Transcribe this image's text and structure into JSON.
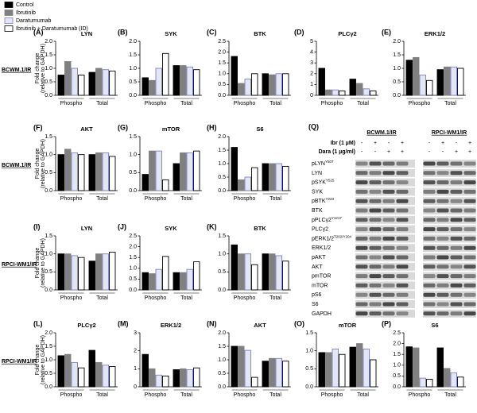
{
  "legend": [
    {
      "name": "Control",
      "color": "#000000",
      "edge": "#000000"
    },
    {
      "name": "Ibrutinib",
      "color": "#808080",
      "edge": "#808080"
    },
    {
      "name": "Daratumumab",
      "color": "#e4e7f3",
      "edge": "#7b80c9"
    },
    {
      "name": "Ibrutinib + Daratumumab (ID)",
      "color": "#ffffff",
      "edge": "#000000"
    }
  ],
  "row_labels": [
    "BCWM.1/IR",
    "BCWM.1/IR",
    "RPCI-WM1/IR",
    "RPCI-WM1/IR"
  ],
  "chart_data": [
    {
      "type": "bar",
      "label": "(A)",
      "title": "LYN",
      "ylabel": [
        "Fold change",
        "(relative to GAPDH)"
      ],
      "categories": [
        "Phospho",
        "Total"
      ],
      "series": [
        {
          "values": [
            0.75,
            0.85
          ]
        },
        {
          "values": [
            1.25,
            1.0
          ]
        },
        {
          "values": [
            1.0,
            0.95
          ]
        },
        {
          "values": [
            0.75,
            0.9
          ]
        }
      ],
      "ylim": [
        0,
        2
      ],
      "yticks": [
        {
          "value": 0,
          "label": "0.0"
        },
        {
          "value": 0.5,
          "label": "0.5"
        },
        {
          "value": 1,
          "label": "1.0"
        },
        {
          "value": 1.5,
          "label": "1.5"
        },
        {
          "value": 2,
          "label": "2.0"
        }
      ]
    },
    {
      "type": "bar",
      "label": "(B)",
      "title": "SYK",
      "categories": [
        "Phospho",
        "Total"
      ],
      "series": [
        {
          "values": [
            0.65,
            1.1
          ]
        },
        {
          "values": [
            0.55,
            1.1
          ]
        },
        {
          "values": [
            1.0,
            1.05
          ]
        },
        {
          "values": [
            1.55,
            0.95
          ]
        }
      ],
      "ylim": [
        0,
        2
      ],
      "yticks": [
        {
          "value": 0,
          "label": "0.0"
        },
        {
          "value": 0.5,
          "label": "0.5"
        },
        {
          "value": 1,
          "label": "1.0"
        },
        {
          "value": 1.5,
          "label": "1.5"
        },
        {
          "value": 2,
          "label": "2.0"
        }
      ]
    },
    {
      "type": "bar",
      "label": "(C)",
      "title": "BTK",
      "categories": [
        "Phospho",
        "Total"
      ],
      "series": [
        {
          "values": [
            1.8,
            1.0
          ]
        },
        {
          "values": [
            0.55,
            0.95
          ]
        },
        {
          "values": [
            0.75,
            1.0
          ]
        },
        {
          "values": [
            1.0,
            1.0
          ]
        }
      ],
      "ylim": [
        0,
        2.5
      ],
      "yticks": [
        {
          "value": 0,
          "label": "0.0"
        },
        {
          "value": 0.5,
          "label": "0.5"
        },
        {
          "value": 1,
          "label": "1.0"
        },
        {
          "value": 1.5,
          "label": "1.5"
        },
        {
          "value": 2,
          "label": "2.0"
        },
        {
          "value": 2.5,
          "label": "2.5"
        }
      ]
    },
    {
      "type": "bar",
      "label": "(D)",
      "title": "PLCγ2",
      "categories": [
        "Phospho",
        "Total"
      ],
      "series": [
        {
          "values": [
            2.5,
            1.5
          ]
        },
        {
          "values": [
            0.5,
            1.1
          ]
        },
        {
          "values": [
            0.5,
            0.6
          ]
        },
        {
          "values": [
            0.4,
            0.4
          ]
        }
      ],
      "ylim": [
        0,
        5
      ],
      "yticks": [
        0,
        1,
        2,
        3,
        4,
        5
      ]
    },
    {
      "type": "bar",
      "label": "(E)",
      "title": "ERK1/2",
      "categories": [
        "Phospho",
        "Total"
      ],
      "series": [
        {
          "values": [
            1.3,
            0.95
          ]
        },
        {
          "values": [
            1.4,
            1.05
          ]
        },
        {
          "values": [
            0.75,
            1.05
          ]
        },
        {
          "values": [
            0.55,
            1.0
          ]
        }
      ],
      "ylim": [
        0,
        2
      ],
      "yticks": [
        {
          "value": 0,
          "label": "0.0"
        },
        {
          "value": 0.5,
          "label": "0.5"
        },
        {
          "value": 1,
          "label": "1.0"
        },
        {
          "value": 1.5,
          "label": "1.5"
        },
        {
          "value": 2,
          "label": "2.0"
        }
      ]
    },
    {
      "type": "bar",
      "label": "(F)",
      "title": "AKT",
      "ylabel": [
        "Fold change",
        "(relative to GAPDH)"
      ],
      "categories": [
        "Phospho",
        "Total"
      ],
      "series": [
        {
          "values": [
            1.0,
            1.0
          ]
        },
        {
          "values": [
            1.15,
            1.05
          ]
        },
        {
          "values": [
            1.05,
            1.05
          ]
        },
        {
          "values": [
            1.0,
            0.95
          ]
        }
      ],
      "ylim": [
        0,
        1.5
      ],
      "yticks": [
        {
          "value": 0,
          "label": "0.0"
        },
        {
          "value": 0.5,
          "label": "0.5"
        },
        {
          "value": 1,
          "label": "1.0"
        },
        {
          "value": 1.5,
          "label": "1.5"
        }
      ]
    },
    {
      "type": "bar",
      "label": "(G)",
      "title": "mTOR",
      "categories": [
        "Phospho",
        "Total"
      ],
      "series": [
        {
          "values": [
            0.45,
            0.75
          ]
        },
        {
          "values": [
            1.1,
            1.05
          ]
        },
        {
          "values": [
            1.1,
            1.05
          ]
        },
        {
          "values": [
            0.3,
            1.1
          ]
        }
      ],
      "ylim": [
        0,
        1.5
      ],
      "yticks": [
        {
          "value": 0,
          "label": "0.0"
        },
        {
          "value": 0.5,
          "label": "0.5"
        },
        {
          "value": 1,
          "label": "1.0"
        },
        {
          "value": 1.5,
          "label": "1.5"
        }
      ]
    },
    {
      "type": "bar",
      "label": "(H)",
      "title": "S6",
      "categories": [
        "Phospho",
        "Total"
      ],
      "series": [
        {
          "values": [
            1.6,
            1.0
          ]
        },
        {
          "values": [
            0.4,
            1.0
          ]
        },
        {
          "values": [
            0.5,
            1.0
          ]
        },
        {
          "values": [
            0.85,
            0.9
          ]
        }
      ],
      "ylim": [
        0,
        2
      ],
      "yticks": [
        {
          "value": 0,
          "label": "0.0"
        },
        {
          "value": 0.5,
          "label": "0.5"
        },
        {
          "value": 1,
          "label": "1.0"
        },
        {
          "value": 1.5,
          "label": "1.5"
        },
        {
          "value": 2,
          "label": "2.0"
        }
      ]
    },
    {
      "type": "bar",
      "label": "(I)",
      "title": "LYN",
      "ylabel": [
        "Fold change",
        "(relative to GAPDH)"
      ],
      "categories": [
        "Phospho",
        "Total"
      ],
      "series": [
        {
          "values": [
            1.0,
            0.8
          ]
        },
        {
          "values": [
            1.0,
            1.0
          ]
        },
        {
          "values": [
            0.95,
            1.0
          ]
        },
        {
          "values": [
            0.9,
            1.05
          ]
        }
      ],
      "ylim": [
        0,
        1.5
      ],
      "yticks": [
        {
          "value": 0,
          "label": "0.0"
        },
        {
          "value": 0.5,
          "label": "0.5"
        },
        {
          "value": 1,
          "label": "1.0"
        },
        {
          "value": 1.5,
          "label": "1.5"
        }
      ]
    },
    {
      "type": "bar",
      "label": "(J)",
      "title": "SYK",
      "categories": [
        "Phospho",
        "Total"
      ],
      "series": [
        {
          "values": [
            0.8,
            0.8
          ]
        },
        {
          "values": [
            0.75,
            0.8
          ]
        },
        {
          "values": [
            0.95,
            0.95
          ]
        },
        {
          "values": [
            1.55,
            1.3
          ]
        }
      ],
      "ylim": [
        0,
        2.5
      ],
      "yticks": [
        {
          "value": 0,
          "label": "0.0"
        },
        {
          "value": 0.5,
          "label": "0.5"
        },
        {
          "value": 1,
          "label": "1.0"
        },
        {
          "value": 1.5,
          "label": "1.5"
        },
        {
          "value": 2,
          "label": "2.0"
        },
        {
          "value": 2.5,
          "label": "2.5"
        }
      ]
    },
    {
      "type": "bar",
      "label": "(K)",
      "title": "BTK",
      "categories": [
        "Phospho",
        "Total"
      ],
      "series": [
        {
          "values": [
            1.25,
            1.0
          ]
        },
        {
          "values": [
            1.0,
            1.0
          ]
        },
        {
          "values": [
            1.0,
            0.95
          ]
        },
        {
          "values": [
            0.7,
            0.8
          ]
        }
      ],
      "ylim": [
        0,
        1.5
      ],
      "yticks": [
        {
          "value": 0,
          "label": "0.0"
        },
        {
          "value": 0.5,
          "label": "0.5"
        },
        {
          "value": 1,
          "label": "1.0"
        },
        {
          "value": 1.5,
          "label": "1.5"
        }
      ]
    },
    {
      "type": "bar",
      "label": "(L)",
      "title": "PLCγ2",
      "ylabel": [
        "Fold change",
        "(relative to GAPDH)"
      ],
      "categories": [
        "Phospho",
        "Total"
      ],
      "series": [
        {
          "values": [
            1.15,
            1.35
          ]
        },
        {
          "values": [
            1.2,
            0.9
          ]
        },
        {
          "values": [
            0.9,
            0.8
          ]
        },
        {
          "values": [
            0.7,
            0.75
          ]
        }
      ],
      "ylim": [
        0,
        2
      ],
      "yticks": [
        {
          "value": 0,
          "label": "0.0"
        },
        {
          "value": 0.5,
          "label": "0.5"
        },
        {
          "value": 1,
          "label": "1.0"
        },
        {
          "value": 1.5,
          "label": "1.5"
        },
        {
          "value": 2,
          "label": "2.0"
        }
      ]
    },
    {
      "type": "bar",
      "label": "(M)",
      "title": "ERK1/2",
      "categories": [
        "Phospho",
        "Total"
      ],
      "series": [
        {
          "values": [
            1.8,
            0.95
          ]
        },
        {
          "values": [
            1.0,
            1.0
          ]
        },
        {
          "values": [
            0.65,
            0.95
          ]
        },
        {
          "values": [
            0.6,
            1.05
          ]
        }
      ],
      "ylim": [
        0,
        3
      ],
      "yticks": [
        0,
        1,
        2,
        3
      ]
    },
    {
      "type": "bar",
      "label": "(N)",
      "title": "AKT",
      "categories": [
        "Phospho",
        "Total"
      ],
      "series": [
        {
          "values": [
            1.5,
            0.95
          ]
        },
        {
          "values": [
            1.5,
            1.05
          ]
        },
        {
          "values": [
            1.35,
            1.05
          ]
        },
        {
          "values": [
            0.35,
            0.95
          ]
        }
      ],
      "ylim": [
        0,
        2
      ],
      "yticks": [
        {
          "value": 0,
          "label": "0.0"
        },
        {
          "value": 0.5,
          "label": "0.5"
        },
        {
          "value": 1,
          "label": "1.0"
        },
        {
          "value": 1.5,
          "label": "1.5"
        },
        {
          "value": 2,
          "label": "2.0"
        }
      ]
    },
    {
      "type": "bar",
      "label": "(O)",
      "title": "mTOR",
      "categories": [
        "Phospho",
        "Total"
      ],
      "series": [
        {
          "values": [
            0.95,
            1.1
          ]
        },
        {
          "values": [
            0.95,
            1.2
          ]
        },
        {
          "values": [
            1.05,
            1.05
          ]
        },
        {
          "values": [
            0.9,
            0.75
          ]
        }
      ],
      "ylim": [
        0,
        1.5
      ],
      "yticks": [
        {
          "value": 0,
          "label": "0.0"
        },
        {
          "value": 0.5,
          "label": "0.5"
        },
        {
          "value": 1,
          "label": "1.0"
        },
        {
          "value": 1.5,
          "label": "1.5"
        }
      ]
    },
    {
      "type": "bar",
      "label": "(P)",
      "title": "S6",
      "categories": [
        "Phospho",
        "Total"
      ],
      "series": [
        {
          "values": [
            1.85,
            1.8
          ]
        },
        {
          "values": [
            1.8,
            0.85
          ]
        },
        {
          "values": [
            0.4,
            0.65
          ]
        },
        {
          "values": [
            0.35,
            0.45
          ]
        }
      ],
      "ylim": [
        0,
        2.5
      ],
      "yticks": [
        {
          "value": 0,
          "label": "0.0"
        },
        {
          "value": 0.5,
          "label": "0.5"
        },
        {
          "value": 1,
          "label": "1.0"
        },
        {
          "value": 1.5,
          "label": "1.5"
        },
        {
          "value": 2,
          "label": "2.0"
        },
        {
          "value": 2.5,
          "label": "2.5"
        }
      ]
    }
  ],
  "blot": {
    "label": "(Q)",
    "cell_lines": [
      "BCWM.1/IR",
      "RPCI-WM1/IR"
    ],
    "treatments": [
      {
        "name": "Ibr (1 µM)",
        "marks": [
          "-",
          "+",
          "-",
          "+",
          "-",
          "+",
          "-",
          "+"
        ]
      },
      {
        "name": "Dara (1 µg/ml)",
        "marks": [
          "-",
          "-",
          "+",
          "+",
          "-",
          "-",
          "+",
          "+"
        ]
      }
    ],
    "bands": [
      {
        "text": "pLYN",
        "sup": "Y507"
      },
      {
        "text": "LYN"
      },
      {
        "text": "pSYK",
        "sup": "Y525"
      },
      {
        "text": "SYK"
      },
      {
        "text": "pBTK",
        "sup": "Y223"
      },
      {
        "text": "BTK"
      },
      {
        "text": "pPLCγ2",
        "sup": "Y1217"
      },
      {
        "text": "PLCγ2"
      },
      {
        "text": "pERK1/2",
        "sup": "T202/Y204"
      },
      {
        "text": "ERK1/2"
      },
      {
        "text": "pAKT"
      },
      {
        "text": "AKT"
      },
      {
        "text": "pmTOR"
      },
      {
        "text": "mTOR"
      },
      {
        "text": "pS6"
      },
      {
        "text": "S6"
      },
      {
        "text": "GAPDH"
      }
    ]
  }
}
